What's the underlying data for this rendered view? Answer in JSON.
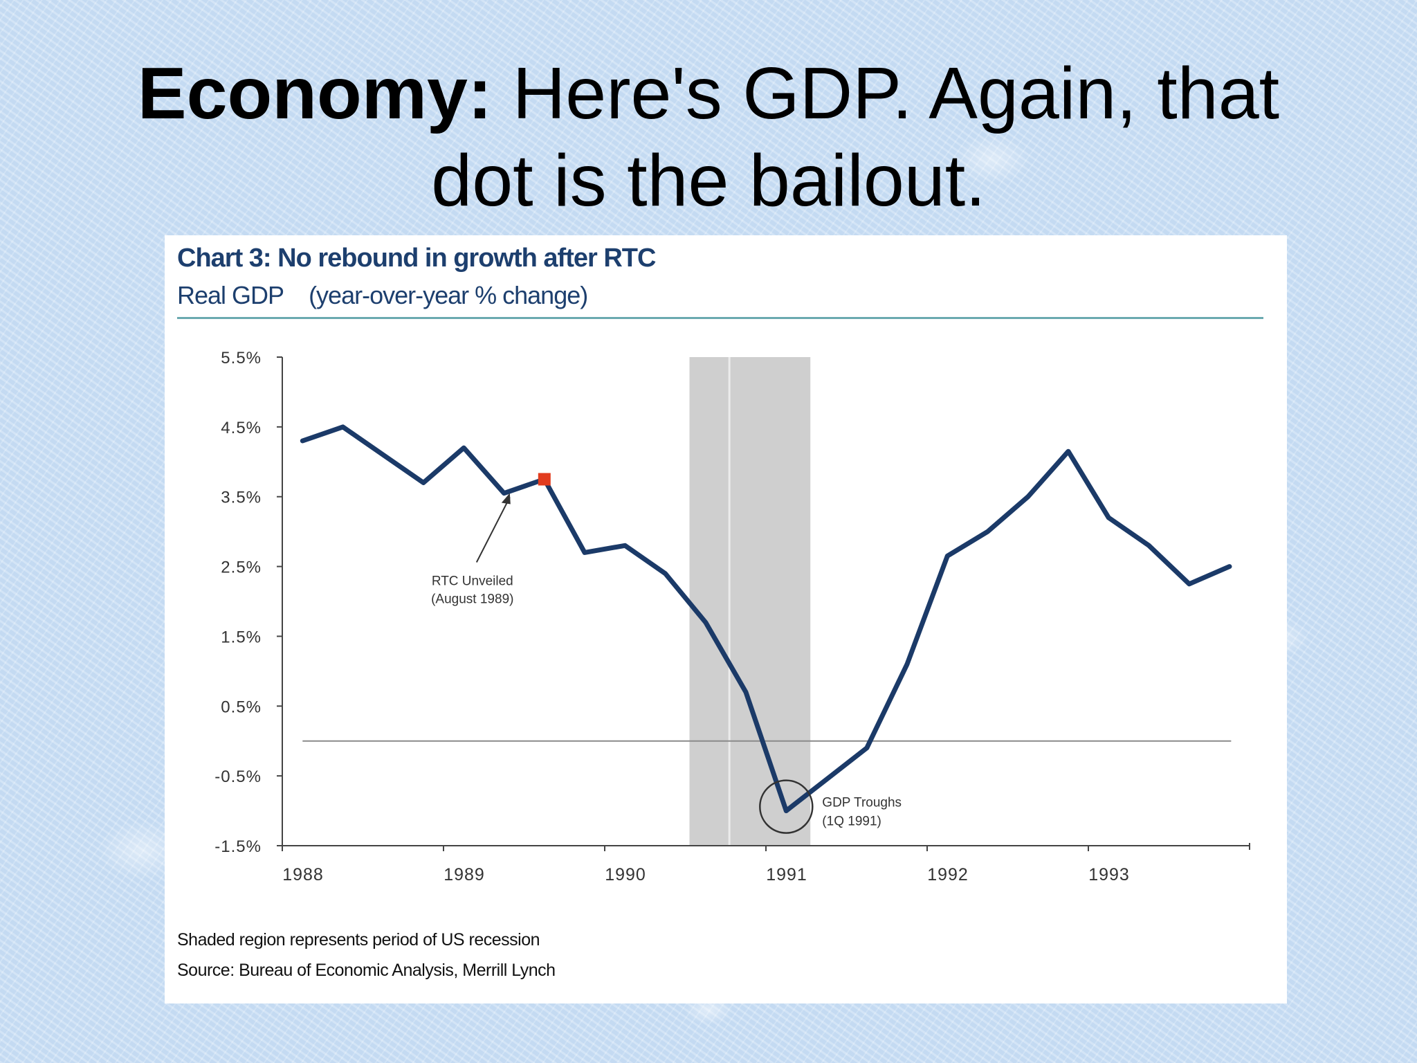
{
  "slide": {
    "title_bold": "Economy:",
    "title_line1_rest": "Here's GDP. Again, that",
    "title_line2": "dot is the bailout."
  },
  "chart_data": {
    "type": "line",
    "title": "Chart 3: No rebound in growth after RTC",
    "subtitle_label": "Real GDP",
    "subtitle_unit": "(year-over-year % change)",
    "ylim": [
      -1.5,
      5.5
    ],
    "yticks": [
      "5.5%",
      "4.5%",
      "3.5%",
      "2.5%",
      "1.5%",
      "0.5%",
      "-0.5%",
      "-1.5%"
    ],
    "ytick_values": [
      5.5,
      4.5,
      3.5,
      2.5,
      1.5,
      0.5,
      -0.5,
      -1.5
    ],
    "xlim": [
      1988,
      1994
    ],
    "xticks": [
      "1988",
      "1989",
      "1990",
      "1991",
      "1992",
      "1993"
    ],
    "xtick_values": [
      1988,
      1989,
      1990,
      1991,
      1992,
      1993
    ],
    "series": [
      {
        "color": "#1b3a68",
        "points": [
          [
            1988.1,
            4.3
          ],
          [
            1988.35,
            4.5
          ],
          [
            1988.6,
            4.1
          ],
          [
            1988.85,
            3.7
          ],
          [
            1989.1,
            4.2
          ],
          [
            1989.35,
            3.55
          ],
          [
            1989.6,
            3.75
          ],
          [
            1989.85,
            2.7
          ],
          [
            1990.1,
            2.8
          ],
          [
            1990.35,
            2.4
          ],
          [
            1990.6,
            1.7
          ],
          [
            1990.85,
            0.7
          ],
          [
            1991.1,
            -1.0
          ],
          [
            1991.35,
            -0.55
          ],
          [
            1991.6,
            -0.1
          ],
          [
            1991.85,
            1.1
          ],
          [
            1992.1,
            2.65
          ],
          [
            1992.35,
            3.0
          ],
          [
            1992.6,
            3.5
          ],
          [
            1992.85,
            4.15
          ],
          [
            1993.1,
            3.2
          ],
          [
            1993.35,
            2.8
          ],
          [
            1993.6,
            2.25
          ],
          [
            1993.85,
            2.5
          ]
        ]
      }
    ],
    "zero_line": 0,
    "recession_band": [
      1990.5,
      1991.25
    ],
    "highlight_point": {
      "x": 1989.6,
      "y": 3.75,
      "color": "#e23c1e"
    },
    "annotations": [
      {
        "line1": "RTC Unveiled",
        "line2": "(August 1989)"
      },
      {
        "line1": "GDP Troughs",
        "line2": "(1Q 1991)"
      }
    ],
    "footnotes": [
      "Shaded region represents period of US recession",
      "Source: Bureau of Economic Analysis, Merrill Lynch"
    ],
    "grid": false,
    "legend": "none"
  }
}
